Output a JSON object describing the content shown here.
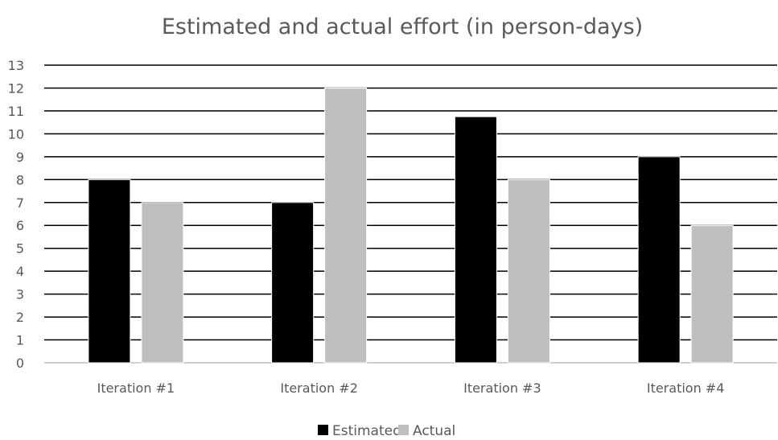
{
  "chart_data": {
    "type": "bar",
    "title": "Estimated and actual effort (in person-days)",
    "xlabel": "",
    "ylabel": "",
    "categories": [
      "Iteration #1",
      "Iteration #2",
      "Iteration #3",
      "Iteration #4"
    ],
    "series": [
      {
        "name": "Estimated",
        "values": [
          8,
          7,
          10.75,
          9
        ],
        "color": "#000000"
      },
      {
        "name": "Actual",
        "values": [
          7,
          12,
          8,
          6
        ],
        "color": "#bfbfbf"
      }
    ],
    "ylim": [
      0,
      13
    ],
    "yticks": [
      "0",
      "1",
      "2",
      "3",
      "4",
      "5",
      "6",
      "7",
      "8",
      "9",
      "10",
      "11",
      "12",
      "13"
    ],
    "grid": true,
    "legend": "bottom"
  }
}
